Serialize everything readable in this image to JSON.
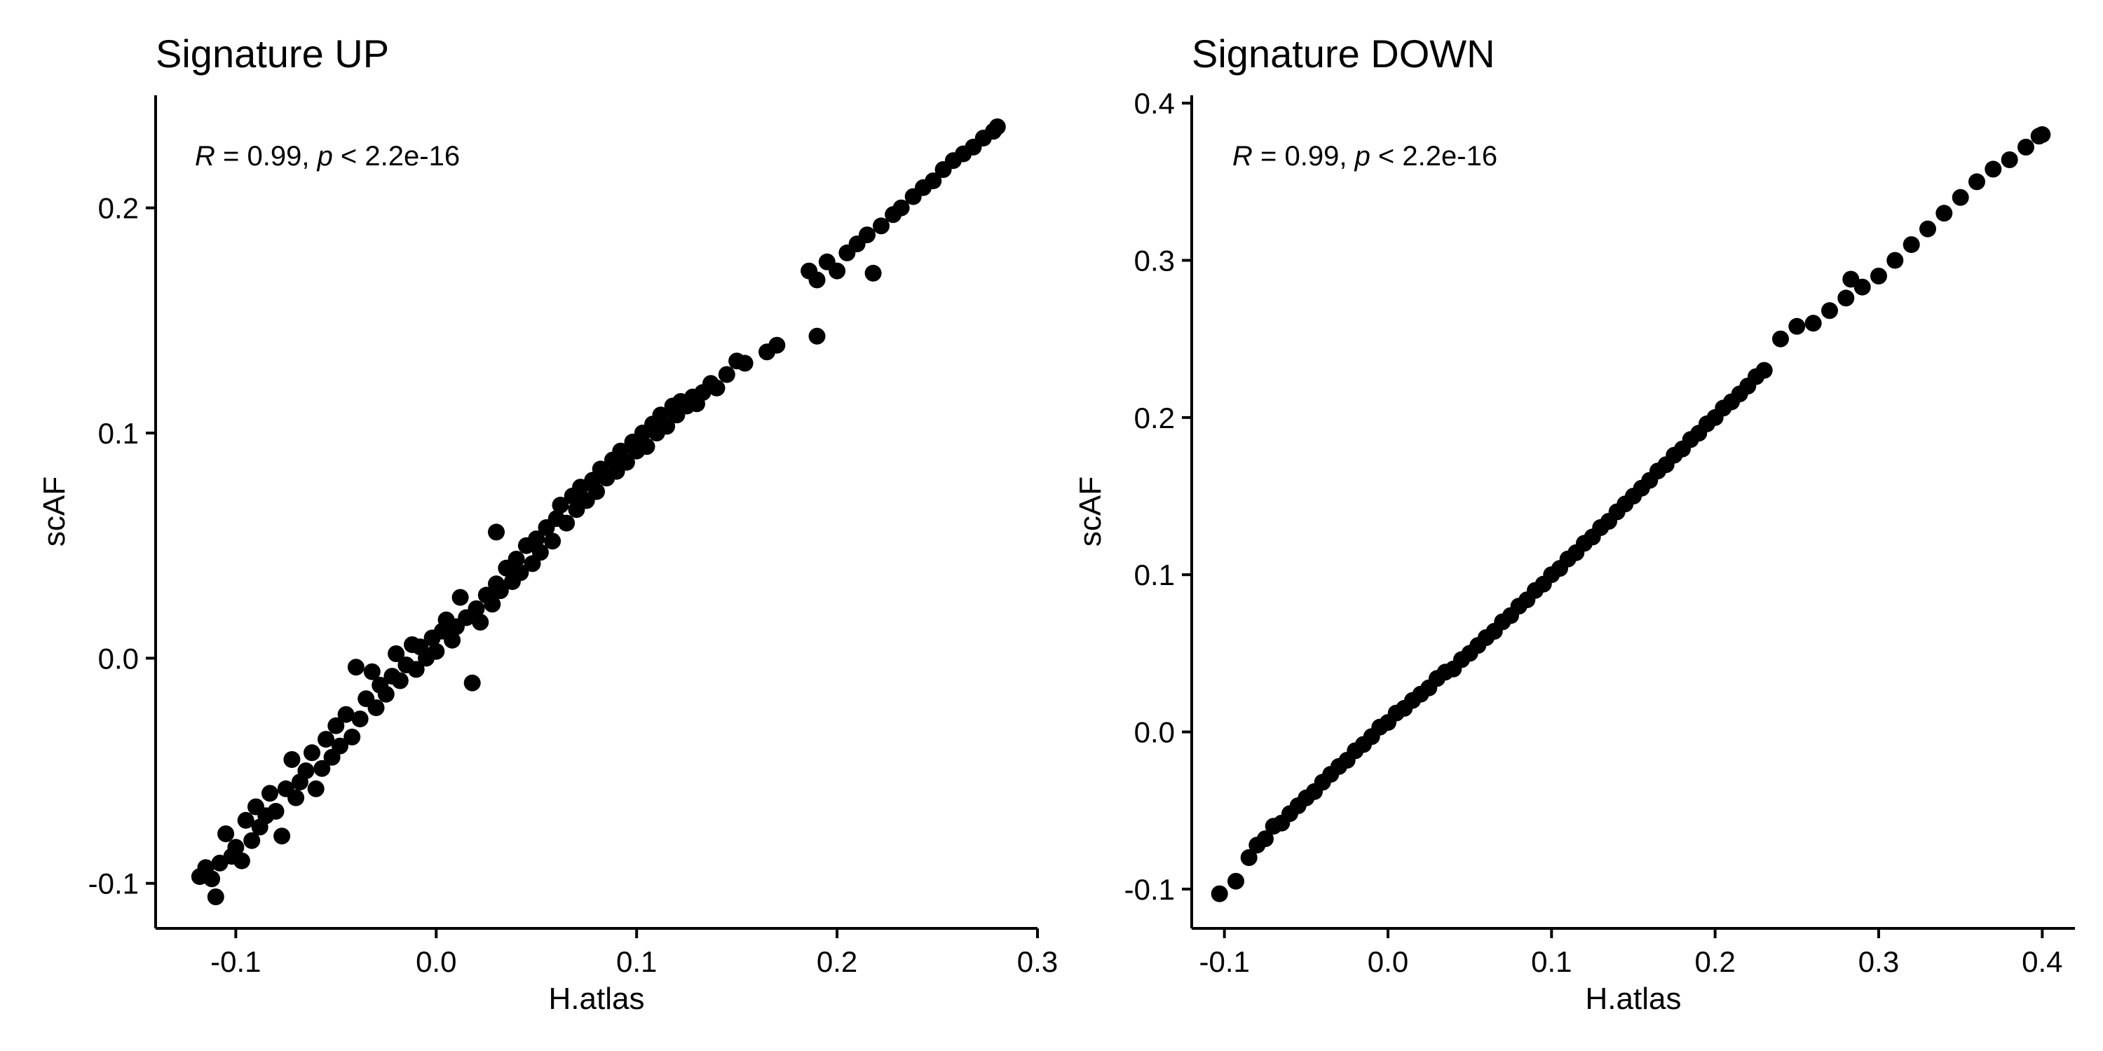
{
  "chart_data": [
    {
      "type": "scatter",
      "title": "Signature UP",
      "xlabel": "H.atlas",
      "ylabel": "scAF",
      "xlim": [
        -0.14,
        0.3
      ],
      "ylim": [
        -0.12,
        0.25
      ],
      "xticks": [
        -0.1,
        0.0,
        0.1,
        0.2,
        0.3
      ],
      "xtick_labels": [
        "-0.1",
        "0.0",
        "0.1",
        "0.2",
        "0.3"
      ],
      "yticks": [
        -0.1,
        0.0,
        0.1,
        0.2
      ],
      "ytick_labels": [
        "-0.1",
        "0.0",
        "0.1",
        "0.2"
      ],
      "grid": false,
      "legend": "none",
      "color": "#000000",
      "annotation": {
        "R_symbol": "R",
        "R_text": " = 0.99, ",
        "p_symbol": "p",
        "p_text": " < 2.2e-16"
      },
      "points": [
        [
          -0.118,
          -0.097
        ],
        [
          -0.115,
          -0.093
        ],
        [
          -0.112,
          -0.098
        ],
        [
          -0.11,
          -0.106
        ],
        [
          -0.108,
          -0.091
        ],
        [
          -0.105,
          -0.078
        ],
        [
          -0.102,
          -0.088
        ],
        [
          -0.1,
          -0.084
        ],
        [
          -0.097,
          -0.09
        ],
        [
          -0.095,
          -0.072
        ],
        [
          -0.092,
          -0.081
        ],
        [
          -0.09,
          -0.066
        ],
        [
          -0.088,
          -0.075
        ],
        [
          -0.085,
          -0.07
        ],
        [
          -0.083,
          -0.06
        ],
        [
          -0.08,
          -0.068
        ],
        [
          -0.077,
          -0.079
        ],
        [
          -0.075,
          -0.058
        ],
        [
          -0.072,
          -0.045
        ],
        [
          -0.07,
          -0.062
        ],
        [
          -0.068,
          -0.055
        ],
        [
          -0.065,
          -0.05
        ],
        [
          -0.062,
          -0.042
        ],
        [
          -0.06,
          -0.058
        ],
        [
          -0.057,
          -0.049
        ],
        [
          -0.055,
          -0.036
        ],
        [
          -0.052,
          -0.044
        ],
        [
          -0.05,
          -0.03
        ],
        [
          -0.048,
          -0.039
        ],
        [
          -0.045,
          -0.025
        ],
        [
          -0.042,
          -0.035
        ],
        [
          -0.04,
          -0.004
        ],
        [
          -0.038,
          -0.027
        ],
        [
          -0.035,
          -0.018
        ],
        [
          -0.032,
          -0.006
        ],
        [
          -0.03,
          -0.022
        ],
        [
          -0.028,
          -0.012
        ],
        [
          -0.025,
          -0.016
        ],
        [
          -0.022,
          -0.008
        ],
        [
          -0.02,
          0.002
        ],
        [
          -0.018,
          -0.01
        ],
        [
          -0.015,
          -0.003
        ],
        [
          -0.012,
          0.006
        ],
        [
          -0.01,
          -0.005
        ],
        [
          -0.008,
          0.005
        ],
        [
          -0.005,
          0.0
        ],
        [
          -0.002,
          0.009
        ],
        [
          0.0,
          0.003
        ],
        [
          0.003,
          0.012
        ],
        [
          0.005,
          0.017
        ],
        [
          0.008,
          0.008
        ],
        [
          0.01,
          0.014
        ],
        [
          0.012,
          0.027
        ],
        [
          0.015,
          0.018
        ],
        [
          0.018,
          -0.011
        ],
        [
          0.02,
          0.022
        ],
        [
          0.022,
          0.016
        ],
        [
          0.025,
          0.028
        ],
        [
          0.028,
          0.024
        ],
        [
          0.03,
          0.033
        ],
        [
          0.03,
          0.056
        ],
        [
          0.032,
          0.03
        ],
        [
          0.035,
          0.04
        ],
        [
          0.038,
          0.034
        ],
        [
          0.04,
          0.044
        ],
        [
          0.042,
          0.038
        ],
        [
          0.045,
          0.05
        ],
        [
          0.048,
          0.042
        ],
        [
          0.05,
          0.053
        ],
        [
          0.052,
          0.047
        ],
        [
          0.055,
          0.058
        ],
        [
          0.058,
          0.052
        ],
        [
          0.06,
          0.062
        ],
        [
          0.062,
          0.068
        ],
        [
          0.065,
          0.06
        ],
        [
          0.068,
          0.072
        ],
        [
          0.07,
          0.066
        ],
        [
          0.072,
          0.076
        ],
        [
          0.075,
          0.07
        ],
        [
          0.078,
          0.079
        ],
        [
          0.08,
          0.074
        ],
        [
          0.082,
          0.084
        ],
        [
          0.085,
          0.08
        ],
        [
          0.088,
          0.088
        ],
        [
          0.09,
          0.083
        ],
        [
          0.092,
          0.092
        ],
        [
          0.095,
          0.087
        ],
        [
          0.098,
          0.096
        ],
        [
          0.1,
          0.092
        ],
        [
          0.103,
          0.1
        ],
        [
          0.105,
          0.094
        ],
        [
          0.108,
          0.104
        ],
        [
          0.11,
          0.1
        ],
        [
          0.112,
          0.108
        ],
        [
          0.115,
          0.103
        ],
        [
          0.118,
          0.112
        ],
        [
          0.12,
          0.108
        ],
        [
          0.122,
          0.114
        ],
        [
          0.125,
          0.112
        ],
        [
          0.128,
          0.116
        ],
        [
          0.13,
          0.113
        ],
        [
          0.133,
          0.118
        ],
        [
          0.137,
          0.122
        ],
        [
          0.14,
          0.12
        ],
        [
          0.145,
          0.126
        ],
        [
          0.15,
          0.132
        ],
        [
          0.154,
          0.131
        ],
        [
          0.165,
          0.136
        ],
        [
          0.17,
          0.139
        ],
        [
          0.19,
          0.143
        ],
        [
          0.186,
          0.172
        ],
        [
          0.19,
          0.168
        ],
        [
          0.195,
          0.176
        ],
        [
          0.2,
          0.172
        ],
        [
          0.205,
          0.18
        ],
        [
          0.21,
          0.184
        ],
        [
          0.215,
          0.188
        ],
        [
          0.218,
          0.171
        ],
        [
          0.222,
          0.192
        ],
        [
          0.228,
          0.197
        ],
        [
          0.232,
          0.2
        ],
        [
          0.238,
          0.205
        ],
        [
          0.243,
          0.209
        ],
        [
          0.248,
          0.212
        ],
        [
          0.253,
          0.217
        ],
        [
          0.258,
          0.221
        ],
        [
          0.263,
          0.224
        ],
        [
          0.268,
          0.227
        ],
        [
          0.273,
          0.231
        ],
        [
          0.278,
          0.234
        ],
        [
          0.28,
          0.236
        ]
      ]
    },
    {
      "type": "scatter",
      "title": "Signature DOWN",
      "xlabel": "H.atlas",
      "ylabel": "scAF",
      "xlim": [
        -0.12,
        0.42
      ],
      "ylim": [
        -0.125,
        0.405
      ],
      "xticks": [
        -0.1,
        0.0,
        0.1,
        0.2,
        0.3,
        0.4
      ],
      "xtick_labels": [
        "-0.1",
        "0.0",
        "0.1",
        "0.2",
        "0.3",
        "0.4"
      ],
      "yticks": [
        -0.1,
        0.0,
        0.1,
        0.2,
        0.3,
        0.4
      ],
      "ytick_labels": [
        "-0.1",
        "0.0",
        "0.1",
        "0.2",
        "0.3",
        "0.4"
      ],
      "grid": false,
      "legend": "none",
      "color": "#000000",
      "annotation": {
        "R_symbol": "R",
        "R_text": " = 0.99, ",
        "p_symbol": "p",
        "p_text": " < 2.2e-16"
      },
      "points": [
        [
          -0.103,
          -0.103
        ],
        [
          -0.093,
          -0.095
        ],
        [
          -0.085,
          -0.08
        ],
        [
          -0.08,
          -0.072
        ],
        [
          -0.075,
          -0.068
        ],
        [
          -0.07,
          -0.06
        ],
        [
          -0.065,
          -0.058
        ],
        [
          -0.06,
          -0.052
        ],
        [
          -0.055,
          -0.047
        ],
        [
          -0.05,
          -0.042
        ],
        [
          -0.045,
          -0.038
        ],
        [
          -0.04,
          -0.032
        ],
        [
          -0.035,
          -0.027
        ],
        [
          -0.03,
          -0.022
        ],
        [
          -0.025,
          -0.018
        ],
        [
          -0.02,
          -0.012
        ],
        [
          -0.015,
          -0.008
        ],
        [
          -0.01,
          -0.003
        ],
        [
          -0.005,
          0.003
        ],
        [
          0.0,
          0.006
        ],
        [
          0.005,
          0.012
        ],
        [
          0.01,
          0.015
        ],
        [
          0.015,
          0.02
        ],
        [
          0.02,
          0.024
        ],
        [
          0.025,
          0.028
        ],
        [
          0.03,
          0.034
        ],
        [
          0.035,
          0.038
        ],
        [
          0.04,
          0.04
        ],
        [
          0.045,
          0.046
        ],
        [
          0.05,
          0.05
        ],
        [
          0.055,
          0.055
        ],
        [
          0.06,
          0.06
        ],
        [
          0.065,
          0.064
        ],
        [
          0.07,
          0.07
        ],
        [
          0.075,
          0.074
        ],
        [
          0.08,
          0.08
        ],
        [
          0.085,
          0.084
        ],
        [
          0.09,
          0.09
        ],
        [
          0.095,
          0.094
        ],
        [
          0.1,
          0.1
        ],
        [
          0.105,
          0.104
        ],
        [
          0.11,
          0.11
        ],
        [
          0.115,
          0.114
        ],
        [
          0.12,
          0.12
        ],
        [
          0.125,
          0.124
        ],
        [
          0.13,
          0.13
        ],
        [
          0.135,
          0.134
        ],
        [
          0.14,
          0.14
        ],
        [
          0.145,
          0.145
        ],
        [
          0.15,
          0.15
        ],
        [
          0.155,
          0.155
        ],
        [
          0.16,
          0.16
        ],
        [
          0.165,
          0.166
        ],
        [
          0.17,
          0.17
        ],
        [
          0.175,
          0.176
        ],
        [
          0.18,
          0.18
        ],
        [
          0.185,
          0.186
        ],
        [
          0.19,
          0.19
        ],
        [
          0.195,
          0.196
        ],
        [
          0.2,
          0.2
        ],
        [
          0.205,
          0.206
        ],
        [
          0.21,
          0.21
        ],
        [
          0.215,
          0.215
        ],
        [
          0.22,
          0.22
        ],
        [
          0.225,
          0.226
        ],
        [
          0.23,
          0.23
        ],
        [
          0.24,
          0.25
        ],
        [
          0.25,
          0.258
        ],
        [
          0.26,
          0.26
        ],
        [
          0.27,
          0.268
        ],
        [
          0.283,
          0.288
        ],
        [
          0.28,
          0.276
        ],
        [
          0.29,
          0.283
        ],
        [
          0.3,
          0.29
        ],
        [
          0.31,
          0.3
        ],
        [
          0.32,
          0.31
        ],
        [
          0.33,
          0.32
        ],
        [
          0.34,
          0.33
        ],
        [
          0.35,
          0.34
        ],
        [
          0.36,
          0.35
        ],
        [
          0.37,
          0.358
        ],
        [
          0.38,
          0.364
        ],
        [
          0.39,
          0.372
        ],
        [
          0.398,
          0.379
        ],
        [
          0.4,
          0.38
        ]
      ]
    }
  ]
}
